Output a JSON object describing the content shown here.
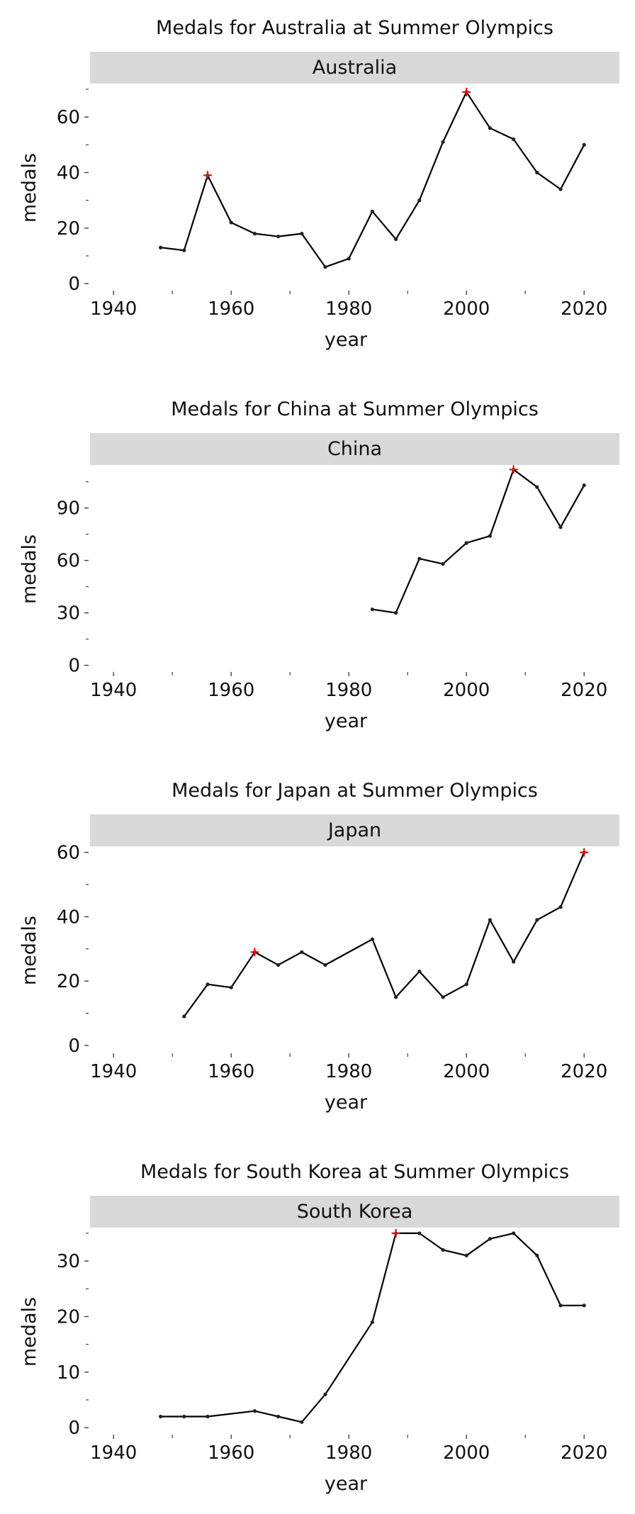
{
  "chart_data": [
    {
      "type": "line",
      "title": "Medals for Australia at Summer Olympics",
      "facet": "Australia",
      "xlabel": "year",
      "ylabel": "medals",
      "xlim": [
        1936,
        2026
      ],
      "ylim": [
        -2,
        71
      ],
      "xticks": [
        1940,
        1960,
        1980,
        2000,
        2020
      ],
      "yticks": [
        0,
        20,
        40,
        60
      ],
      "grid": false,
      "x": [
        1948,
        1952,
        1956,
        1960,
        1964,
        1968,
        1972,
        1976,
        1980,
        1984,
        1988,
        1992,
        1996,
        2000,
        2004,
        2008,
        2012,
        2016,
        2020
      ],
      "values": [
        13,
        12,
        39,
        22,
        18,
        17,
        18,
        6,
        9,
        26,
        16,
        30,
        51,
        69,
        56,
        52,
        40,
        34,
        50
      ],
      "highlight": [
        {
          "x": 1956,
          "y": 39
        },
        {
          "x": 2000,
          "y": 69
        }
      ],
      "line_color": "#000000",
      "highlight_color": "#e01010"
    },
    {
      "type": "line",
      "title": "Medals for China at Summer Olympics",
      "facet": "China",
      "xlabel": "year",
      "ylabel": "medals",
      "xlim": [
        1936,
        2026
      ],
      "ylim": [
        -3,
        113
      ],
      "xticks": [
        1940,
        1960,
        1980,
        2000,
        2020
      ],
      "yticks": [
        0,
        30,
        60,
        90
      ],
      "grid": false,
      "x": [
        1984,
        1988,
        1992,
        1996,
        2000,
        2004,
        2008,
        2012,
        2016,
        2020
      ],
      "values": [
        32,
        30,
        61,
        58,
        70,
        74,
        112,
        102,
        79,
        103
      ],
      "highlight": [
        {
          "x": 2008,
          "y": 112
        }
      ],
      "line_color": "#000000",
      "highlight_color": "#e01010"
    },
    {
      "type": "line",
      "title": "Medals for Japan at Summer Olympics",
      "facet": "Japan",
      "xlabel": "year",
      "ylabel": "medals",
      "xlim": [
        1936,
        2026
      ],
      "ylim": [
        -2,
        61
      ],
      "xticks": [
        1940,
        1960,
        1980,
        2000,
        2020
      ],
      "yticks": [
        0,
        20,
        40,
        60
      ],
      "grid": false,
      "x": [
        1952,
        1956,
        1960,
        1964,
        1968,
        1972,
        1976,
        1984,
        1988,
        1992,
        1996,
        2000,
        2004,
        2008,
        2012,
        2016,
        2020
      ],
      "values": [
        9,
        19,
        18,
        29,
        25,
        29,
        25,
        33,
        15,
        23,
        15,
        19,
        39,
        26,
        39,
        43,
        60
      ],
      "highlight": [
        {
          "x": 1964,
          "y": 29
        },
        {
          "x": 2020,
          "y": 60
        }
      ],
      "line_color": "#000000",
      "highlight_color": "#e01010"
    },
    {
      "type": "line",
      "title": "Medals for South Korea at Summer Olympics",
      "facet": "South Korea",
      "xlabel": "year",
      "ylabel": "medals",
      "xlim": [
        1936,
        2026
      ],
      "ylim": [
        -1,
        35.5
      ],
      "xticks": [
        1940,
        1960,
        1980,
        2000,
        2020
      ],
      "yticks": [
        0,
        10,
        20,
        30
      ],
      "grid": false,
      "x": [
        1948,
        1952,
        1956,
        1964,
        1968,
        1972,
        1976,
        1984,
        1988,
        1992,
        1996,
        2000,
        2004,
        2008,
        2012,
        2016,
        2020
      ],
      "values": [
        2,
        2,
        2,
        3,
        2,
        1,
        6,
        19,
        35,
        35,
        32,
        31,
        34,
        35,
        31,
        22,
        22
      ],
      "highlight": [
        {
          "x": 1988,
          "y": 35
        }
      ],
      "line_color": "#000000",
      "highlight_color": "#e01010"
    }
  ]
}
